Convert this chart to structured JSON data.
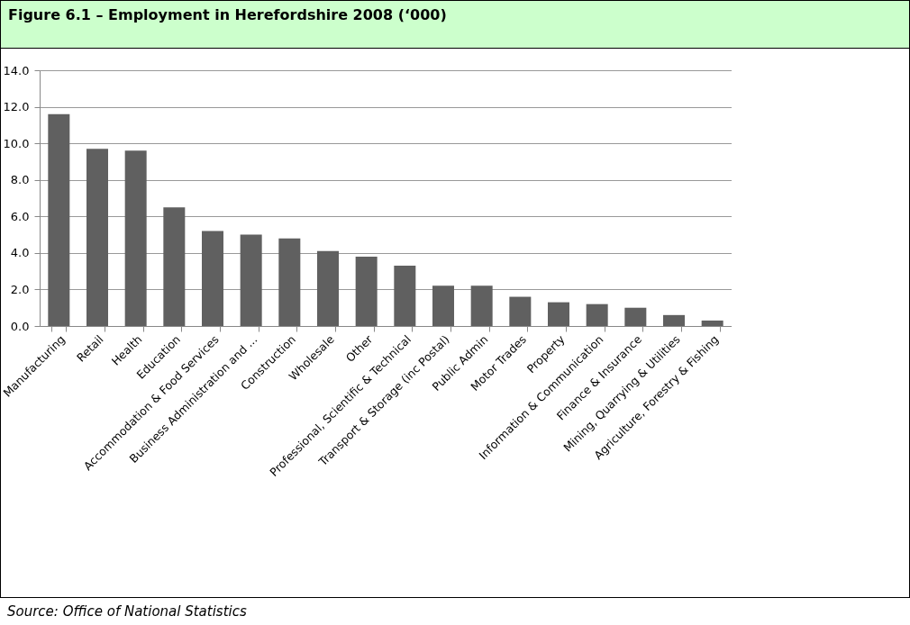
{
  "chart_data": {
    "type": "bar",
    "title": "Figure 6.1 – Employment in Herefordshire 2008 (‘000)",
    "categories": [
      "Manufacturing",
      "Retail",
      "Health",
      "Education",
      "Accommodation & Food Services",
      "Business Administration and ...",
      "Construction",
      "Wholesale",
      "Other",
      "Professional, Scientific & Technical",
      "Transport & Storage (inc Postal)",
      "Public Admin",
      "Motor Trades",
      "Property",
      "Information & Communication",
      "Finance & Insurance",
      "Mining, Quarrying & Utilities",
      "Agriculture, Forestry & Fishing"
    ],
    "values": [
      11.6,
      9.7,
      9.6,
      6.5,
      5.2,
      5.0,
      4.8,
      4.1,
      3.8,
      3.3,
      2.2,
      2.2,
      1.6,
      1.3,
      1.2,
      1.0,
      0.6,
      0.3
    ],
    "color": "#606060",
    "ylim": [
      0,
      14
    ],
    "yticks": [
      {
        "value": 0,
        "label": "0.0"
      },
      {
        "value": 2,
        "label": "2.0"
      },
      {
        "value": 4,
        "label": "4.0"
      },
      {
        "value": 6,
        "label": "6.0"
      },
      {
        "value": 8,
        "label": "8.0"
      },
      {
        "value": 10,
        "label": "10.0"
      },
      {
        "value": 12,
        "label": "12.0"
      },
      {
        "value": 14,
        "label": "14.0"
      }
    ],
    "grid": "y",
    "annotations": [
      "Source: Office of National Statistics"
    ]
  }
}
